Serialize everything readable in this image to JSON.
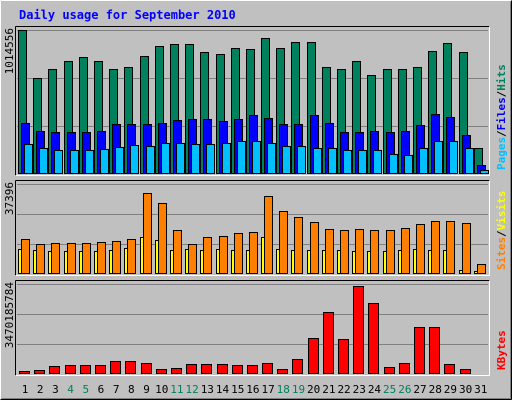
{
  "title": "Daily usage for September 2010",
  "chart_data": [
    {
      "type": "bar",
      "panel": "hits-files-pages",
      "ymax_label": "1014556",
      "ylim": [
        0,
        1014556
      ],
      "legend": {
        "hits": {
          "label": "Hits",
          "color": "#00805c"
        },
        "sep1": "/",
        "files": {
          "label": "Files",
          "color": "#0000ff"
        },
        "sep2": "/",
        "pages": {
          "label": "Pages",
          "color": "#00c0ff"
        }
      },
      "series": [
        {
          "name": "Hits",
          "color": "#00805c",
          "values": [
            1014556,
            677780,
            738617,
            798140,
            824710,
            793418,
            742692,
            752805,
            834432,
            903223,
            916854,
            916854,
            861097,
            846887,
            887441,
            880349,
            956379,
            887441,
            930991,
            930991,
            752805,
            738617,
            798140,
            697030,
            738617,
            742692,
            753818,
            869215,
            923941,
            860086,
            185493
          ]
        },
        {
          "name": "Files",
          "color": "#0000ff",
          "values": [
            362484,
            305777,
            298685,
            298685,
            298685,
            305777,
            355391,
            355391,
            355391,
            362484,
            383763,
            390856,
            390856,
            376670,
            390856,
            418222,
            397949,
            355391,
            355391,
            418222,
            362484,
            298685,
            298685,
            305777,
            298685,
            305777,
            348298,
            425314,
            404030,
            275786,
            60000
          ]
        },
        {
          "name": "Pages",
          "color": "#00c0ff",
          "values": [
            213000,
            180000,
            166000,
            166000,
            166000,
            173000,
            187000,
            202000,
            194000,
            216000,
            216000,
            208000,
            208000,
            216000,
            230000,
            230000,
            216000,
            194000,
            194000,
            180000,
            180000,
            166000,
            166000,
            166000,
            144000,
            137000,
            180000,
            230000,
            230000,
            180000,
            30000
          ]
        }
      ]
    },
    {
      "type": "bar",
      "panel": "sites-visits",
      "ymax_label": "37396",
      "ylim": [
        0,
        37396
      ],
      "legend": {
        "visits": {
          "label": "Visits",
          "color": "#ffff00"
        },
        "sep": "/",
        "sites": {
          "label": "Sites",
          "color": "#ff8000"
        }
      },
      "series": [
        {
          "name": "Visits",
          "color": "#ffff00",
          "values": [
            10500,
            9800,
            9600,
            9400,
            9400,
            9600,
            10000,
            10800,
            15400,
            14300,
            9800,
            10500,
            9800,
            10500,
            9800,
            10000,
            15400,
            10500,
            10000,
            9800,
            9800,
            9800,
            9400,
            9400,
            9600,
            9800,
            10500,
            10000,
            10000,
            1600,
            1200
          ]
        },
        {
          "name": "Sites",
          "color": "#ff8000",
          "values": [
            14500,
            12600,
            12900,
            13000,
            12800,
            13100,
            13800,
            14500,
            33800,
            29600,
            18200,
            12600,
            15200,
            15800,
            17100,
            17400,
            32500,
            26000,
            23700,
            21800,
            18800,
            18300,
            18500,
            18300,
            18200,
            19300,
            20700,
            22000,
            22000,
            21200,
            4300
          ]
        }
      ]
    },
    {
      "type": "bar",
      "panel": "kbytes",
      "ymax_label": "3470185784",
      "ylim": [
        0,
        3470185784
      ],
      "legend": {
        "kbytes": {
          "label": "KBytes",
          "color": "#ff0000"
        }
      },
      "series": [
        {
          "name": "KBytes",
          "color": "#ff0000",
          "values": [
            110000000,
            160000000,
            300000000,
            350000000,
            350000000,
            350000000,
            520000000,
            520000000,
            430000000,
            200000000,
            240000000,
            400000000,
            400000000,
            390000000,
            350000000,
            350000000,
            430000000,
            180000000,
            570000000,
            1370000000,
            2380000000,
            1340000000,
            3400000000,
            2720000000,
            280000000,
            440000000,
            1800000000,
            1800000000,
            400000000,
            200000000,
            0
          ]
        }
      ]
    }
  ],
  "days": [
    "1",
    "2",
    "3",
    "4",
    "5",
    "6",
    "7",
    "8",
    "9",
    "10",
    "11",
    "12",
    "13",
    "14",
    "15",
    "16",
    "17",
    "18",
    "19",
    "20",
    "21",
    "22",
    "23",
    "24",
    "25",
    "26",
    "27",
    "28",
    "29",
    "30",
    "31"
  ],
  "weekend_days": [
    "4",
    "5",
    "11",
    "12",
    "18",
    "19",
    "25",
    "26"
  ],
  "colors": {
    "background": "#c0c0c0",
    "title": "#0000ff",
    "day_label": "#000000",
    "weekend_label": "#00805c",
    "grid": "#808080"
  }
}
